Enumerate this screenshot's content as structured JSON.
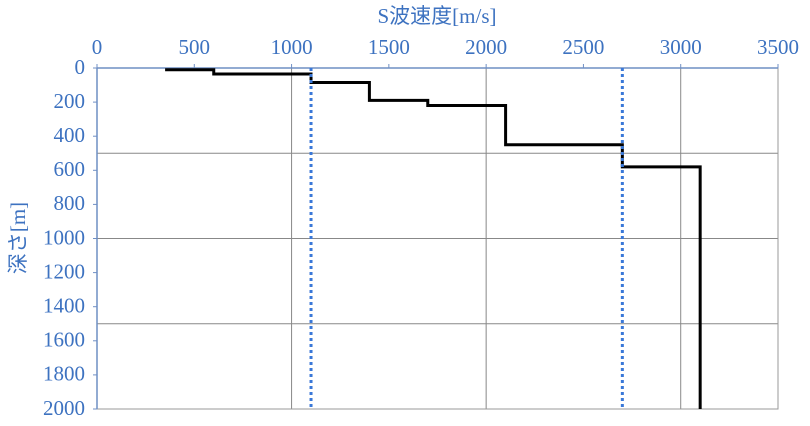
{
  "chart_data": {
    "type": "line",
    "x_label": "S波速度[m/s]",
    "y_label": "深さ[m]",
    "xlim": [
      0,
      3500
    ],
    "xticks": [
      0,
      500,
      1000,
      1500,
      2000,
      2500,
      3000,
      3500
    ],
    "ylim": [
      0,
      2000
    ],
    "yticks": [
      0,
      200,
      400,
      600,
      800,
      1000,
      1200,
      1400,
      1600,
      1800,
      2000
    ],
    "y_inverted": true,
    "xgrid": [
      1000,
      2000,
      3000
    ],
    "ygrid": [
      500,
      1000,
      1500
    ],
    "series": [
      {
        "color": "#000000",
        "dashed": false,
        "x": [
          350,
          600,
          600,
          1100,
          1100,
          1400,
          1400,
          1700,
          1700,
          2100,
          2100,
          2700,
          2700,
          3100,
          3100
        ],
        "values": [
          10,
          10,
          35,
          35,
          85,
          85,
          190,
          190,
          220,
          220,
          450,
          450,
          580,
          580,
          2000
        ]
      },
      {
        "color": "#3a78d8",
        "dashed": true,
        "x": [
          1100,
          1100
        ],
        "values": [
          0,
          2000
        ]
      },
      {
        "color": "#3a78d8",
        "dashed": true,
        "x": [
          2700,
          2700
        ],
        "values": [
          0,
          2000
        ]
      }
    ]
  }
}
